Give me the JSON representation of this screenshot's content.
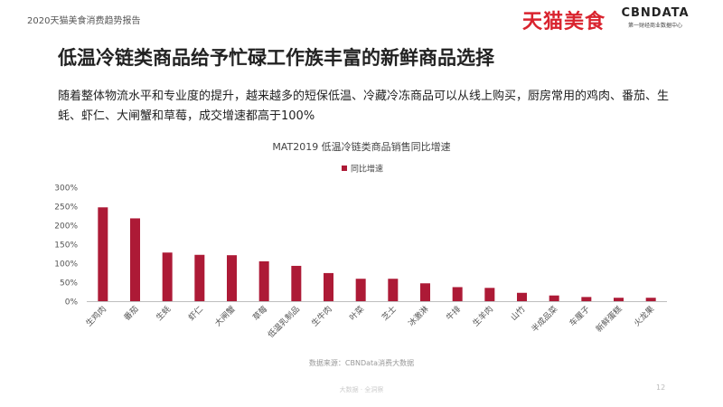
{
  "header": {
    "report_label": "2020天猫美食消费趋势报告",
    "brand_tmall": "天猫美食",
    "brand_cbn": "CBNDATA",
    "brand_cbn_tagline": "第一财经商业数据中心"
  },
  "slide": {
    "title": "低温冷链类商品给予忙碌工作族丰富的新鲜商品选择",
    "description": "随着整体物流水平和专业度的提升，越来越多的短保低温、冷藏冷冻商品可以从线上购买，厨房常用的鸡肉、番茄、生蚝、虾仁、大闸蟹和草莓，成交增速都高于100%"
  },
  "chart_data": {
    "type": "bar",
    "title": "MAT2019 低温冷链类商品销售同比增速",
    "legend": "top-center",
    "categories": [
      "生鸡肉",
      "番茄",
      "生蚝",
      "虾仁",
      "大闸蟹",
      "草莓",
      "低温乳制品",
      "生牛肉",
      "叶菜",
      "芝士",
      "冰激淋",
      "牛排",
      "生羊肉",
      "山竹",
      "半成品菜",
      "车厘子",
      "新鲜蛋糕",
      "火龙果"
    ],
    "series": [
      {
        "name": "同比增速",
        "values": [
          247,
          218,
          128,
          122,
          121,
          105,
          93,
          74,
          59,
          59,
          47,
          37,
          35,
          22,
          15,
          11,
          9,
          9
        ]
      }
    ],
    "ylim": [
      0,
      300
    ],
    "yticks": [
      0,
      50,
      100,
      150,
      200,
      250,
      300
    ],
    "ytick_suffix": "%",
    "grid": false,
    "colors": {
      "bar": "#ad1a36",
      "axis": "#bfbfbf",
      "text": "#555555"
    }
  },
  "footer": {
    "source": "数据来源：CBNData消费大数据",
    "watermark": "大数据 · 全洞察",
    "page_number": "12"
  }
}
